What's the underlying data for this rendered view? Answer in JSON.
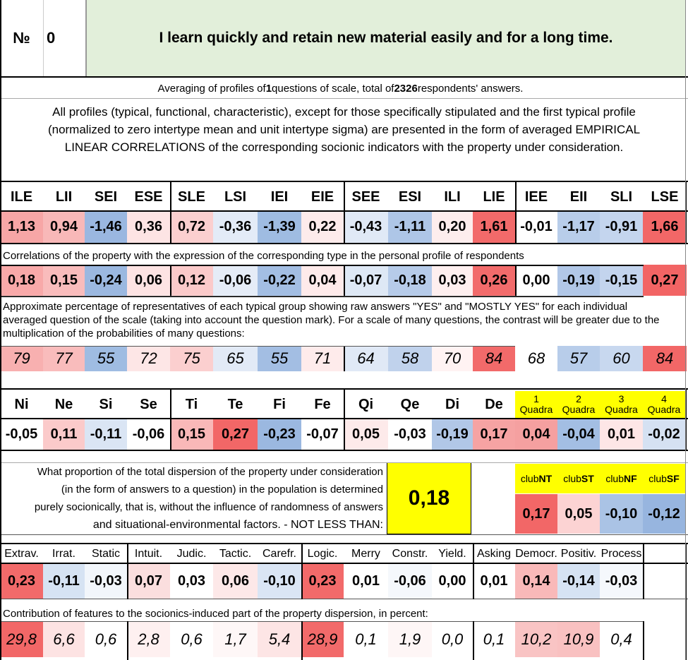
{
  "header": {
    "num_label": "№",
    "num_value": "0",
    "question": "I learn quickly and retain new material easily and for a long time."
  },
  "summary": {
    "prefix": "Averaging of profiles of ",
    "n_questions": "1",
    "middle": " questions of scale, total of ",
    "n_answers": "2326",
    "suffix": " respondents' answers."
  },
  "description": {
    "line1": "All profiles (typical, functional, characteristic), except for those specifically stipulated and the first typical profile",
    "line2": "(normalized to zero intertype mean and unit intertype sigma) are presented in the form of averaged EMPIRICAL",
    "line3": "LINEAR CORRELATIONS of the corresponding socionic indicators with the property under consideration."
  },
  "types": {
    "labels": [
      "ILE",
      "LII",
      "SEI",
      "ESE",
      "SLE",
      "LSI",
      "IEI",
      "EIE",
      "SEE",
      "ESI",
      "ILI",
      "LIE",
      "IEE",
      "EII",
      "SLI",
      "LSE"
    ],
    "profile": [
      "1,13",
      "0,94",
      "-1,46",
      "0,36",
      "0,72",
      "-0,36",
      "-1,39",
      "0,22",
      "-0,43",
      "-1,11",
      "0,20",
      "1,61",
      "-0,01",
      "-1,17",
      "-0,91",
      "1,66"
    ],
    "profile_colors": [
      "#f7a6a6",
      "#f8b8b8",
      "#9ab7e0",
      "#fde4e4",
      "#fbcfcf",
      "#e3ebf7",
      "#9fbce2",
      "#fdebeb",
      "#e0e9f6",
      "#aec6e7",
      "#fdeded",
      "#f26a6a",
      "#fefefe",
      "#b8cdea",
      "#c4d5ee",
      "#f26767"
    ],
    "corr_caption": "Correlations of the property with the expression of the corresponding type in the personal profile of respondents",
    "correlations": [
      "0,18",
      "0,15",
      "-0,24",
      "0,06",
      "0,12",
      "-0,06",
      "-0,22",
      "0,04",
      "-0,07",
      "-0,18",
      "0,03",
      "0,26",
      "0,00",
      "-0,19",
      "-0,15",
      "0,27"
    ],
    "corr_colors": [
      "#f8a9a9",
      "#f9bcbc",
      "#9bb8e0",
      "#fde3e3",
      "#fbcaca",
      "#e5ecf7",
      "#a3bee3",
      "#feeaea",
      "#dee8f5",
      "#b6cbe9",
      "#feefef",
      "#f26b6b",
      "#ffffff",
      "#b1c7e7",
      "#c3d4ed",
      "#f26464"
    ],
    "pct_caption1": "Approximate percentage of representatives of each typical group showing raw answers \"YES\" and \"MOSTLY YES\" for each individual",
    "pct_caption2": "averaged question of the scale (taking into account the question mark). For a scale of many questions, the contrast will be greater due to the",
    "pct_caption3": "multiplication of the probabilities of many questions:",
    "percentages": [
      "79",
      "77",
      "55",
      "72",
      "75",
      "65",
      "55",
      "71",
      "64",
      "58",
      "70",
      "84",
      "68",
      "57",
      "60",
      "84"
    ],
    "pct_colors": [
      "#f8b0b0",
      "#f9bcbc",
      "#9fbce2",
      "#fde6e6",
      "#fbcfcf",
      "#e2eaf6",
      "#a3bee3",
      "#feebeb",
      "#e0e9f6",
      "#c0d2ec",
      "#fff3f3",
      "#f26a6a",
      "#ffffff",
      "#b8cdea",
      "#c8d8ef",
      "#f26767"
    ]
  },
  "functions": {
    "labels": [
      "Ni",
      "Ne",
      "Si",
      "Se",
      "Ti",
      "Te",
      "Fi",
      "Fe",
      "Qi",
      "Qe",
      "Di",
      "De"
    ],
    "values": [
      "-0,05",
      "0,11",
      "-0,11",
      "-0,06",
      "0,15",
      "0,27",
      "-0,23",
      "-0,07",
      "0,05",
      "-0,03",
      "-0,19",
      "0,17"
    ],
    "colors": [
      "#ffffff",
      "#fbcaca",
      "#dae5f4",
      "#ffffff",
      "#f9b8b8",
      "#f26767",
      "#9bb8e0",
      "#ffffff",
      "#fdeaea",
      "#ffffff",
      "#b1c7e7",
      "#f6a3a3"
    ]
  },
  "quadras": {
    "labels": [
      {
        "num": "1",
        "word": "Quadra"
      },
      {
        "num": "2",
        "word": "Quadra"
      },
      {
        "num": "3",
        "word": "Quadra"
      },
      {
        "num": "4",
        "word": "Quadra"
      }
    ],
    "values": [
      "0,04",
      "-0,04",
      "0,01",
      "-0,02"
    ],
    "colors": [
      "#f5a0a0",
      "#a3bee3",
      "#fde6e6",
      "#d5e1f2"
    ],
    "header_bg": "#ffff00"
  },
  "dispersion": {
    "line1": "What proportion of the total dispersion of the property under consideration",
    "line2": "(in the form of answers to a question) in the population is determined",
    "line3": "purely socionically, that is, without the influence of randomness of answers",
    "line4": "and situational-environmental factors. - NOT LESS THAN:",
    "value": "0,18",
    "value_bg": "#ffff00"
  },
  "clubs": {
    "labels": [
      {
        "pre": "club",
        "bold": "NT"
      },
      {
        "pre": "club",
        "bold": "ST"
      },
      {
        "pre": "club",
        "bold": "NF"
      },
      {
        "pre": "club",
        "bold": "SF"
      }
    ],
    "values": [
      "0,17",
      "0,05",
      "-0,10",
      "-0,12"
    ],
    "colors": [
      "#f26767",
      "#fcd3d3",
      "#aac3e5",
      "#97b5df"
    ],
    "header_bg": "#ffff00"
  },
  "features": {
    "labels": [
      "Extrav.",
      "Irrat.",
      "Static",
      "Intuit.",
      "Judic.",
      "Tactic.",
      "Carefr.",
      "Logic.",
      "Merry",
      "Constr.",
      "Yield.",
      "Asking",
      "Democr.",
      "Positiv.",
      "Process"
    ],
    "values": [
      "0,23",
      "-0,11",
      "-0,03",
      "0,07",
      "0,03",
      "0,06",
      "-0,10",
      "0,23",
      "0,01",
      "-0,06",
      "0,00",
      "0,01",
      "0,14",
      "-0,14",
      "-0,03"
    ],
    "colors": [
      "#f26a6a",
      "#d6e3f3",
      "#f2f6fb",
      "#fbdede",
      "#ffffff",
      "#fde8e8",
      "#dae5f4",
      "#f26a6a",
      "#ffffff",
      "#f5f8fc",
      "#ffffff",
      "#ffffff",
      "#f9b9b9",
      "#d6e3f3",
      "#f5f8fc"
    ],
    "contrib_caption": "Contribution of features to the socionics-induced part of the property dispersion, in percent:",
    "contributions": [
      "29,8",
      "6,6",
      "0,6",
      "2,8",
      "0,6",
      "1,7",
      "5,4",
      "28,9",
      "0,1",
      "1,9",
      "0,0",
      "0,1",
      "10,2",
      "10,9",
      "0,4"
    ],
    "contrib_colors": [
      "#f26767",
      "#fde3e3",
      "#ffffff",
      "#fef0f0",
      "#ffffff",
      "#fef7f7",
      "#fde5e5",
      "#f26a6a",
      "#ffffff",
      "#fef6f6",
      "#ffffff",
      "#ffffff",
      "#f9c4c4",
      "#f9c1c1",
      "#ffffff"
    ]
  },
  "colors": {
    "header_green": "#e2efda",
    "border": "#000000"
  }
}
